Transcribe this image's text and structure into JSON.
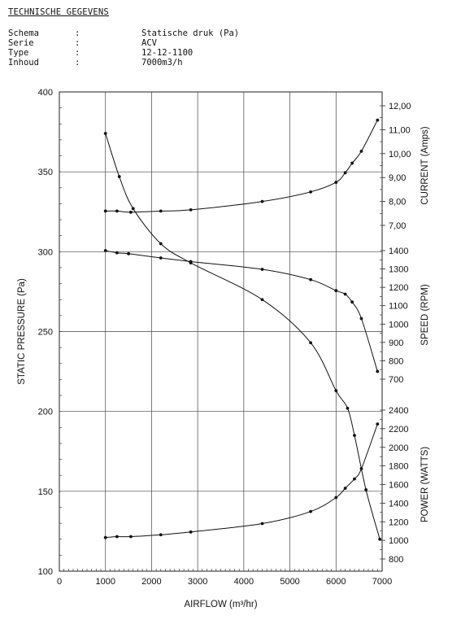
{
  "header": {
    "title": "TECHNISCHE GEGEVENS",
    "specs": [
      {
        "key": "Schema",
        "colon": ":",
        "value": "Statische druk (Pa)"
      },
      {
        "key": "Serie",
        "colon": ":",
        "value": "ACV"
      },
      {
        "key": "Type",
        "colon": ":",
        "value": "12-12-1100"
      },
      {
        "key": "Inhoud",
        "colon": ":",
        "value": "7000m3/h"
      }
    ]
  },
  "chart_data": {
    "type": "line",
    "xlabel": "AIRFLOW (m³/hr)",
    "ylabel": "STATIC PRESSURE (Pa)",
    "xlim": [
      0,
      7000
    ],
    "ylim": [
      100,
      400
    ],
    "x_ticks": [
      "0",
      "1000",
      "2000",
      "3000",
      "4000",
      "5000",
      "6000",
      "7000"
    ],
    "y_ticks": [
      "100",
      "150",
      "200",
      "250",
      "300",
      "350",
      "400"
    ],
    "grid": true,
    "right_axes": [
      {
        "label": "CURRENT (Amps)",
        "range": [
          6.0,
          12.0
        ],
        "ticks": [
          "7,00",
          "8,00",
          "9,00",
          "10,00",
          "11,00",
          "12,00"
        ]
      },
      {
        "label": "SPEED (RPM)",
        "range": [
          700,
          1400
        ],
        "ticks": [
          "700",
          "800",
          "900",
          "1000",
          "1100",
          "1200",
          "1300",
          "1400"
        ]
      },
      {
        "label": "POWER (WATTS)",
        "range": [
          800,
          2400
        ],
        "ticks": [
          "800",
          "1000",
          "1200",
          "1400",
          "1600",
          "1800",
          "2000",
          "2200",
          "2400"
        ]
      }
    ],
    "series": [
      {
        "axis": "pressure",
        "x": [
          1000,
          1300,
          1600,
          2200,
          2850,
          4400,
          5450,
          6000,
          6250,
          6400,
          6650,
          6950
        ],
        "y": [
          374,
          347,
          327,
          305,
          293,
          270,
          243,
          213,
          202,
          185,
          151,
          120
        ]
      },
      {
        "axis": "current",
        "x": [
          1000,
          1250,
          1550,
          2200,
          2850,
          4400,
          5450,
          6000,
          6200,
          6350,
          6550,
          6900
        ],
        "y": [
          7.6,
          7.6,
          7.55,
          7.6,
          7.65,
          8.0,
          8.4,
          8.8,
          9.2,
          9.6,
          10.1,
          11.4
        ]
      },
      {
        "axis": "speed",
        "x": [
          1000,
          1250,
          1500,
          2200,
          2850,
          4400,
          5450,
          6000,
          6200,
          6350,
          6550,
          6900
        ],
        "y": [
          1400,
          1388,
          1383,
          1360,
          1340,
          1298,
          1242,
          1182,
          1163,
          1120,
          1030,
          742
        ]
      },
      {
        "axis": "power",
        "x": [
          1000,
          1250,
          1550,
          2200,
          2850,
          4400,
          5450,
          6000,
          6200,
          6400,
          6550,
          6900
        ],
        "y": [
          1030,
          1040,
          1040,
          1060,
          1090,
          1180,
          1310,
          1460,
          1560,
          1660,
          1770,
          2250
        ]
      }
    ]
  }
}
